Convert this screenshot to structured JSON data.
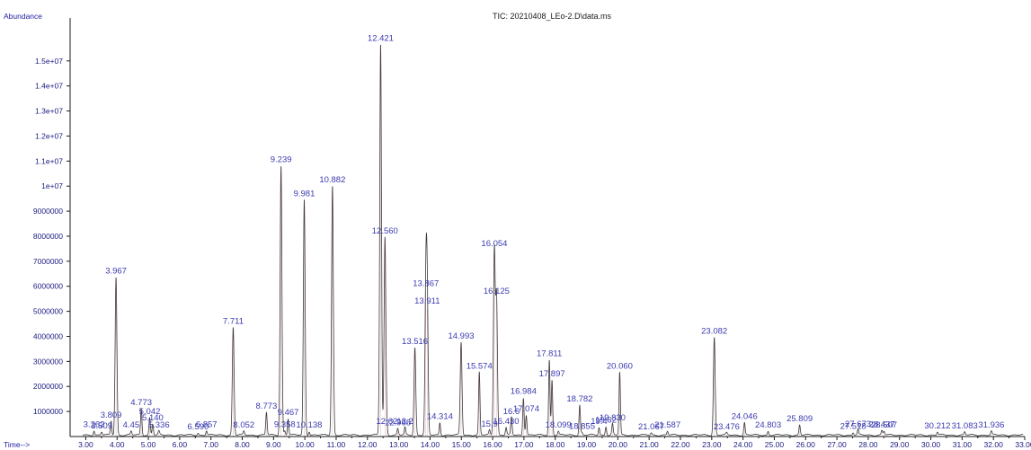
{
  "title": "TIC: 20210408_LEo-2.D\\data.ms",
  "ylabel": "Abundance",
  "xlabel": "Time-->",
  "colors": {
    "trace": "#3a3a3a",
    "trace_highlight": "#b03030",
    "axis": "#1a1a1a",
    "labels": "#3a3ab0"
  },
  "chart_data": {
    "type": "line",
    "title": "TIC: 20210408_LEo-2.D\\data.ms",
    "xlabel": "Time-->",
    "ylabel": "Abundance",
    "xlim": [
      2.5,
      33.0
    ],
    "ylim": [
      0,
      16500000
    ],
    "grid": false,
    "x_ticks": [
      3,
      4,
      5,
      6,
      7,
      8,
      9,
      10,
      11,
      12,
      13,
      14,
      15,
      16,
      17,
      18,
      19,
      20,
      21,
      22,
      23,
      24,
      25,
      26,
      27,
      28,
      29,
      30,
      31,
      32,
      33
    ],
    "x_tick_labels": [
      "3.00",
      "4.00",
      "5.00",
      "6.00",
      "7.00",
      "8.00",
      "9.00",
      "10.00",
      "11.00",
      "12.00",
      "13.00",
      "14.00",
      "15.00",
      "16.00",
      "17.00",
      "18.00",
      "19.00",
      "20.00",
      "21.00",
      "22.00",
      "23.00",
      "24.00",
      "25.00",
      "26.00",
      "27.00",
      "28.00",
      "29.00",
      "30.00",
      "31.00",
      "32.00",
      "33.00"
    ],
    "y_ticks": [
      1000000,
      2000000,
      3000000,
      4000000,
      5000000,
      6000000,
      7000000,
      8000000,
      9000000,
      10000000,
      11000000,
      12000000,
      13000000,
      14000000,
      15000000
    ],
    "y_tick_labels": [
      "1000000",
      "2000000",
      "3000000",
      "4000000",
      "5000000",
      "6000000",
      "7000000",
      "8000000",
      "9000000",
      "1e+07",
      "1.1e+07",
      "1.2e+07",
      "1.3e+07",
      "1.4e+07",
      "1.5e+07"
    ],
    "peaks": [
      {
        "rt": 3.262,
        "label": "3.262",
        "height": 180000
      },
      {
        "rt": 3.509,
        "label": "3.509",
        "height": 120000
      },
      {
        "rt": 3.809,
        "label": "3.809",
        "height": 550000
      },
      {
        "rt": 3.967,
        "label": "3.967",
        "height": 6300000
      },
      {
        "rt": 4.45,
        "label": "4.45",
        "height": 150000
      },
      {
        "rt": 4.773,
        "label": "4.773",
        "height": 1050000
      },
      {
        "rt": 5.042,
        "label": "5.042",
        "height": 700000
      },
      {
        "rt": 5.14,
        "label": "5.140",
        "height": 450000
      },
      {
        "rt": 5.336,
        "label": "5.336",
        "height": 150000
      },
      {
        "rt": 6.59,
        "label": "6.590",
        "height": 80000
      },
      {
        "rt": 6.857,
        "label": "6.857",
        "height": 180000
      },
      {
        "rt": 7.711,
        "label": "7.711",
        "height": 4300000
      },
      {
        "rt": 8.052,
        "label": "8.052",
        "height": 150000
      },
      {
        "rt": 8.773,
        "label": "8.773",
        "height": 900000
      },
      {
        "rt": 9.239,
        "label": "9.239",
        "height": 10750000
      },
      {
        "rt": 9.358,
        "label": "9.358",
        "height": 180000
      },
      {
        "rt": 9.467,
        "label": "9.467",
        "height": 650000
      },
      {
        "rt": 9.981,
        "label": "9.981",
        "height": 9400000
      },
      {
        "rt": 10.138,
        "label": "10.138",
        "height": 150000
      },
      {
        "rt": 10.882,
        "label": "10.882",
        "height": 9950000
      },
      {
        "rt": 12.421,
        "label": "12.421",
        "height": 15600000
      },
      {
        "rt": 12.56,
        "label": "12.560",
        "height": 7900000
      },
      {
        "rt": 12.62,
        "label": "12.62",
        "height": 300000
      },
      {
        "rt": 12.968,
        "label": "12.968",
        "height": 250000
      },
      {
        "rt": 13.2,
        "label": "13.2",
        "height": 300000
      },
      {
        "rt": 13.516,
        "label": "13.516",
        "height": 3500000
      },
      {
        "rt": 13.867,
        "label": "13.867",
        "height": 5800000
      },
      {
        "rt": 13.911,
        "label": "13.911",
        "height": 5100000
      },
      {
        "rt": 14.314,
        "label": "14.314",
        "height": 500000
      },
      {
        "rt": 14.993,
        "label": "14.993",
        "height": 3700000
      },
      {
        "rt": 15.574,
        "label": "15.574",
        "height": 2500000
      },
      {
        "rt": 15.9,
        "label": "15.9",
        "height": 200000
      },
      {
        "rt": 16.054,
        "label": "16.054",
        "height": 7400000
      },
      {
        "rt": 16.125,
        "label": "16.125",
        "height": 5500000
      },
      {
        "rt": 16.43,
        "label": "16.430",
        "height": 300000
      },
      {
        "rt": 16.6,
        "label": "16.6",
        "height": 700000
      },
      {
        "rt": 16.984,
        "label": "16.984",
        "height": 1500000
      },
      {
        "rt": 17.074,
        "label": "17.074",
        "height": 800000
      },
      {
        "rt": 17.811,
        "label": "17.811",
        "height": 3000000
      },
      {
        "rt": 17.897,
        "label": "17.897",
        "height": 2200000
      },
      {
        "rt": 18.099,
        "label": "18.099",
        "height": 150000
      },
      {
        "rt": 18.782,
        "label": "18.782",
        "height": 1200000
      },
      {
        "rt": 18.855,
        "label": "18.855",
        "height": 100000
      },
      {
        "rt": 19.4,
        "label": "19.4",
        "height": 300000
      },
      {
        "rt": 19.62,
        "label": "19.62",
        "height": 350000
      },
      {
        "rt": 19.83,
        "label": "19.830",
        "height": 450000
      },
      {
        "rt": 20.06,
        "label": "20.060",
        "height": 2500000
      },
      {
        "rt": 21.067,
        "label": "21.067",
        "height": 80000
      },
      {
        "rt": 21.587,
        "label": "21.587",
        "height": 150000
      },
      {
        "rt": 23.082,
        "label": "23.082",
        "height": 3900000
      },
      {
        "rt": 23.476,
        "label": "23.476",
        "height": 80000
      },
      {
        "rt": 24.046,
        "label": "24.046",
        "height": 500000
      },
      {
        "rt": 24.803,
        "label": "24.803",
        "height": 150000
      },
      {
        "rt": 25.809,
        "label": "25.809",
        "height": 400000
      },
      {
        "rt": 27.518,
        "label": "27.518",
        "height": 100000
      },
      {
        "rt": 27.673,
        "label": "27.673",
        "height": 200000
      },
      {
        "rt": 28.437,
        "label": "28.437",
        "height": 180000
      },
      {
        "rt": 28.507,
        "label": "28.507",
        "height": 150000
      },
      {
        "rt": 30.212,
        "label": "30.212",
        "height": 120000
      },
      {
        "rt": 31.083,
        "label": "31.083",
        "height": 120000
      },
      {
        "rt": 31.936,
        "label": "31.936",
        "height": 150000
      }
    ]
  }
}
